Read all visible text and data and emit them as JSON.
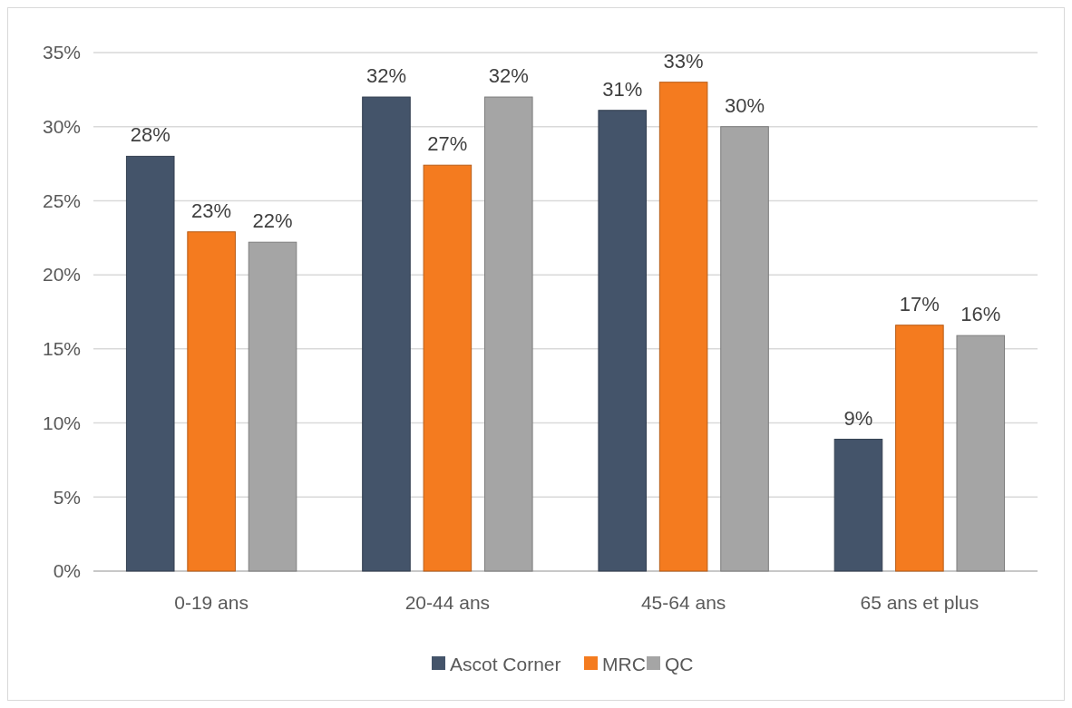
{
  "chart_data": {
    "type": "bar",
    "categories": [
      "0-19 ans",
      "20-44 ans",
      "45-64 ans",
      "65 ans et plus"
    ],
    "series": [
      {
        "name": "Ascot Corner",
        "color": "#44546a",
        "values": [
          28,
          32,
          31.1,
          8.9
        ],
        "value_labels": [
          "28%",
          "32%",
          "31%",
          "9%"
        ]
      },
      {
        "name": "MRC",
        "color": "#f47b1f",
        "values": [
          22.9,
          27.4,
          33,
          16.6
        ],
        "value_labels": [
          "23%",
          "27%",
          "33%",
          "17%"
        ]
      },
      {
        "name": "QC",
        "color": "#a5a5a5",
        "values": [
          22.2,
          32,
          30,
          15.9
        ],
        "value_labels": [
          "22%",
          "32%",
          "30%",
          "16%"
        ]
      }
    ],
    "ylim": [
      0,
      35
    ],
    "yticks": [
      {
        "value": 0,
        "label": "0%"
      },
      {
        "value": 5,
        "label": "5%"
      },
      {
        "value": 10,
        "label": "10%"
      },
      {
        "value": 15,
        "label": "15%"
      },
      {
        "value": 20,
        "label": "20%"
      },
      {
        "value": 25,
        "label": "25%"
      },
      {
        "value": 30,
        "label": "30%"
      },
      {
        "value": 35,
        "label": "35%"
      }
    ],
    "grid": "y",
    "legend": "bottom"
  }
}
